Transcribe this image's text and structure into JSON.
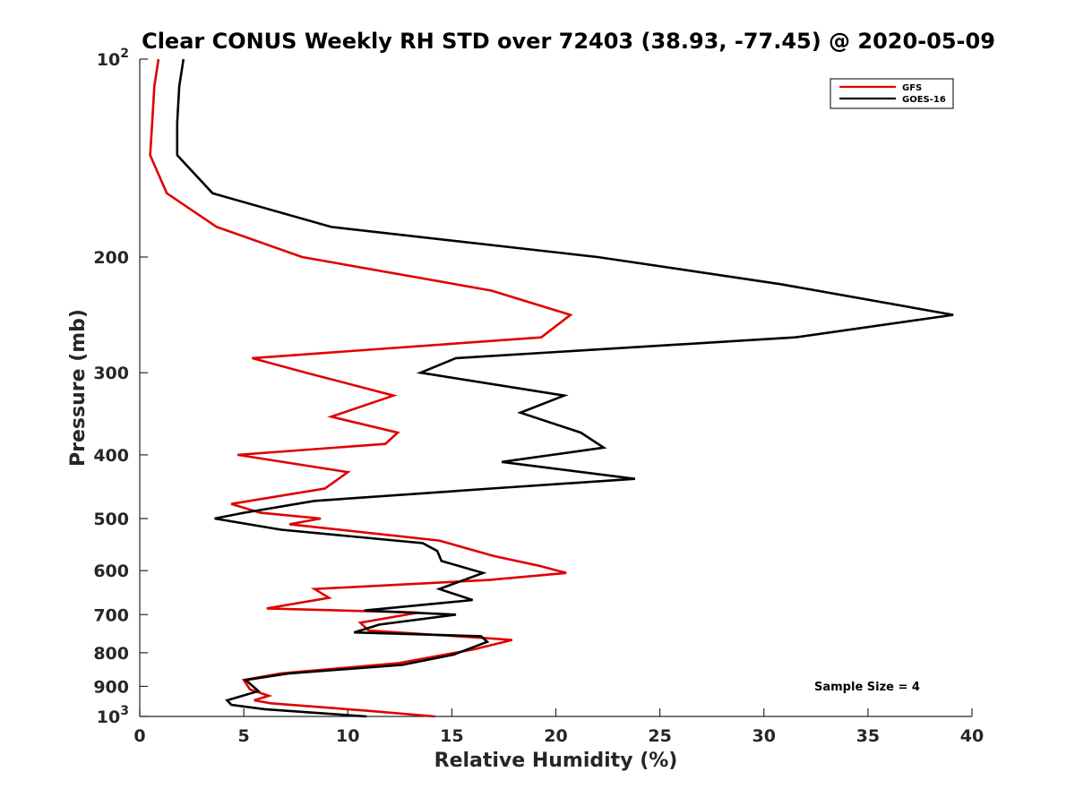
{
  "chart_data": {
    "type": "line",
    "title": "Clear CONUS Weekly RH STD over 72403 (38.93, -77.45) @ 2020-05-09",
    "xlabel": "Relative Humidity (%)",
    "ylabel": "Pressure (mb)",
    "xlim": [
      0,
      40
    ],
    "ylim": [
      100,
      1000
    ],
    "y_scale": "log",
    "y_reversed": true,
    "x_ticks": [
      "0",
      "5",
      "10",
      "15",
      "20",
      "25",
      "30",
      "35",
      "40"
    ],
    "y_ticks": [
      {
        "value": 100,
        "label": "10",
        "exp": "2"
      },
      {
        "value": 200,
        "label": "200"
      },
      {
        "value": 300,
        "label": "300"
      },
      {
        "value": 400,
        "label": "400"
      },
      {
        "value": 500,
        "label": "500"
      },
      {
        "value": 600,
        "label": "600"
      },
      {
        "value": 700,
        "label": "700"
      },
      {
        "value": 800,
        "label": "800"
      },
      {
        "value": 900,
        "label": "900"
      },
      {
        "value": 1000,
        "label": "10",
        "exp": "3"
      }
    ],
    "grid": false,
    "legend_position": "top-right",
    "annotation": "Sample Size = 4",
    "series": [
      {
        "name": "GFS",
        "color": "#e00000",
        "points": [
          [
            0.9,
            100
          ],
          [
            0.7,
            110
          ],
          [
            0.6,
            125
          ],
          [
            0.5,
            140
          ],
          [
            1.3,
            160
          ],
          [
            3.7,
            180
          ],
          [
            7.8,
            200
          ],
          [
            16.9,
            225
          ],
          [
            20.7,
            245
          ],
          [
            19.3,
            265
          ],
          [
            5.4,
            285
          ],
          [
            8.0,
            300
          ],
          [
            12.2,
            325
          ],
          [
            9.2,
            350
          ],
          [
            12.4,
            370
          ],
          [
            11.8,
            385
          ],
          [
            4.7,
            400
          ],
          [
            10.0,
            425
          ],
          [
            8.9,
            450
          ],
          [
            4.4,
            475
          ],
          [
            5.8,
            490
          ],
          [
            8.7,
            500
          ],
          [
            7.2,
            510
          ],
          [
            14.4,
            540
          ],
          [
            17.0,
            570
          ],
          [
            19.2,
            590
          ],
          [
            20.5,
            605
          ],
          [
            16.8,
            620
          ],
          [
            8.4,
            640
          ],
          [
            9.1,
            660
          ],
          [
            6.1,
            685
          ],
          [
            13.4,
            695
          ],
          [
            10.6,
            720
          ],
          [
            11.0,
            740
          ],
          [
            16.6,
            760
          ],
          [
            17.9,
            765
          ],
          [
            16.1,
            790
          ],
          [
            12.4,
            830
          ],
          [
            6.8,
            860
          ],
          [
            5.0,
            880
          ],
          [
            5.3,
            910
          ],
          [
            6.2,
            930
          ],
          [
            5.5,
            945
          ],
          [
            6.3,
            955
          ],
          [
            10.9,
            980
          ],
          [
            14.2,
            1000
          ]
        ]
      },
      {
        "name": "GOES-16",
        "color": "#000000",
        "points": [
          [
            2.1,
            100
          ],
          [
            1.9,
            110
          ],
          [
            1.8,
            125
          ],
          [
            1.8,
            140
          ],
          [
            3.5,
            160
          ],
          [
            9.2,
            180
          ],
          [
            22.0,
            200
          ],
          [
            30.8,
            220
          ],
          [
            39.1,
            245
          ],
          [
            31.5,
            265
          ],
          [
            15.2,
            285
          ],
          [
            13.5,
            300
          ],
          [
            20.4,
            325
          ],
          [
            18.3,
            345
          ],
          [
            21.2,
            370
          ],
          [
            22.3,
            390
          ],
          [
            17.4,
            410
          ],
          [
            23.8,
            435
          ],
          [
            16.9,
            450
          ],
          [
            8.4,
            470
          ],
          [
            5.0,
            490
          ],
          [
            3.6,
            500
          ],
          [
            6.8,
            520
          ],
          [
            13.6,
            545
          ],
          [
            14.3,
            560
          ],
          [
            14.5,
            580
          ],
          [
            16.5,
            605
          ],
          [
            14.4,
            640
          ],
          [
            16.0,
            665
          ],
          [
            10.8,
            690
          ],
          [
            15.2,
            700
          ],
          [
            11.5,
            725
          ],
          [
            10.3,
            745
          ],
          [
            16.4,
            755
          ],
          [
            16.7,
            770
          ],
          [
            15.1,
            805
          ],
          [
            12.6,
            835
          ],
          [
            7.2,
            860
          ],
          [
            5.1,
            880
          ],
          [
            5.7,
            915
          ],
          [
            4.2,
            945
          ],
          [
            4.4,
            960
          ],
          [
            6.0,
            975
          ],
          [
            10.9,
            1000
          ]
        ]
      }
    ]
  }
}
